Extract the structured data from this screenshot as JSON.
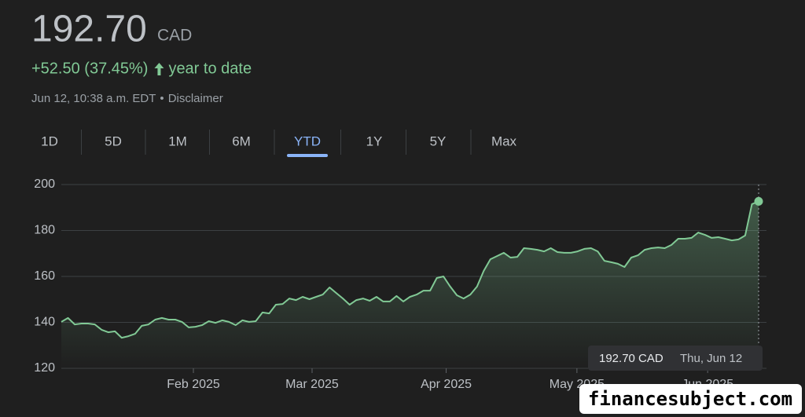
{
  "header": {
    "price": "192.70",
    "currency": "CAD",
    "change": "+52.50 (37.45%)",
    "period": "year to date",
    "timestamp": "Jun 12, 10:38 a.m. EDT",
    "separator": "•",
    "disclaimer": "Disclaimer"
  },
  "tabs": [
    "1D",
    "5D",
    "1M",
    "6M",
    "YTD",
    "1Y",
    "5Y",
    "Max"
  ],
  "active_tab": "YTD",
  "tooltip": {
    "price": "192.70 CAD",
    "date": "Thu, Jun 12"
  },
  "watermark": "financesubject.com",
  "chart_data": {
    "type": "area",
    "color": "#81c995",
    "values": [
      140.2,
      141.9,
      139.1,
      139.5,
      139.5,
      139.1,
      136.8,
      135.7,
      136.1,
      133.3,
      134.0,
      135.0,
      138.5,
      139.1,
      141.2,
      141.9,
      141.2,
      141.2,
      140.2,
      137.8,
      138.1,
      138.8,
      140.5,
      139.8,
      140.9,
      140.2,
      138.8,
      140.9,
      140.2,
      140.5,
      144.3,
      143.9,
      147.7,
      148.0,
      150.4,
      149.7,
      151.1,
      150.1,
      151.1,
      152.1,
      155.2,
      152.8,
      150.4,
      147.7,
      149.7,
      150.4,
      149.4,
      151.1,
      149.1,
      149.1,
      151.5,
      149.1,
      151.1,
      152.1,
      153.8,
      153.8,
      159.3,
      160.0,
      155.6,
      151.8,
      150.4,
      152.1,
      155.6,
      162.4,
      167.5,
      168.9,
      170.3,
      168.2,
      168.5,
      172.3,
      172.0,
      171.6,
      170.9,
      172.3,
      170.6,
      170.3,
      170.3,
      170.9,
      172.0,
      172.3,
      170.9,
      166.8,
      166.2,
      165.5,
      164.1,
      168.2,
      169.2,
      171.6,
      172.3,
      172.6,
      172.3,
      173.7,
      176.4,
      176.4,
      176.8,
      179.1,
      178.1,
      176.8,
      177.1,
      176.4,
      175.7,
      176.1,
      177.8,
      191.5,
      192.7
    ],
    "xlim": [
      0,
      104
    ],
    "xticks": [
      {
        "value": 19.7,
        "label": "Feb 2025"
      },
      {
        "value": 37.4,
        "label": "Mar 2025"
      },
      {
        "value": 57.4,
        "label": "Apr 2025"
      },
      {
        "value": 76.9,
        "label": "May 2025"
      },
      {
        "value": 96.4,
        "label": "Jun 2025"
      }
    ],
    "ylim": [
      120,
      200
    ],
    "yticks": [
      120,
      140,
      160,
      180,
      200
    ],
    "grid": true
  }
}
